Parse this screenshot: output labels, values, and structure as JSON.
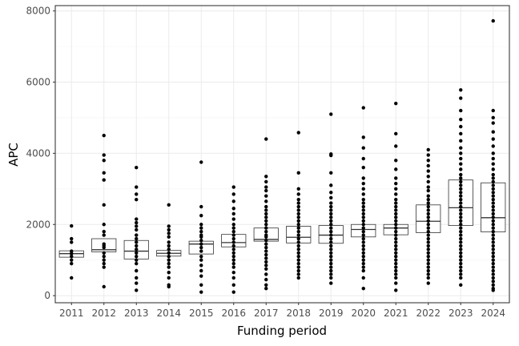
{
  "chart_data": {
    "type": "box",
    "xlabel": "Funding period",
    "ylabel": "APC",
    "ylim": [
      -200,
      8150
    ],
    "yticks": [
      0,
      2000,
      4000,
      6000,
      8000
    ],
    "grid": true,
    "categories": [
      "2011",
      "2012",
      "2013",
      "2014",
      "2015",
      "2016",
      "2017",
      "2018",
      "2019",
      "2020",
      "2021",
      "2022",
      "2023",
      "2024"
    ],
    "boxes": [
      {
        "q1": 1080,
        "median": 1180,
        "q3": 1260
      },
      {
        "q1": 1230,
        "median": 1290,
        "q3": 1600
      },
      {
        "q1": 1030,
        "median": 1250,
        "q3": 1550
      },
      {
        "q1": 1110,
        "median": 1190,
        "q3": 1270
      },
      {
        "q1": 1170,
        "median": 1450,
        "q3": 1530
      },
      {
        "q1": 1370,
        "median": 1490,
        "q3": 1720
      },
      {
        "q1": 1530,
        "median": 1580,
        "q3": 1900
      },
      {
        "q1": 1480,
        "median": 1640,
        "q3": 1950
      },
      {
        "q1": 1470,
        "median": 1700,
        "q3": 1970
      },
      {
        "q1": 1650,
        "median": 1860,
        "q3": 2000
      },
      {
        "q1": 1710,
        "median": 1900,
        "q3": 2000
      },
      {
        "q1": 1770,
        "median": 2090,
        "q3": 2550
      },
      {
        "q1": 1970,
        "median": 2470,
        "q3": 3250
      },
      {
        "q1": 1790,
        "median": 2190,
        "q3": 3170
      }
    ],
    "points": [
      [
        1960,
        1600,
        1500,
        1250,
        1180,
        1100,
        1000,
        900,
        500
      ],
      [
        4500,
        3950,
        3800,
        3450,
        3250,
        2550,
        2000,
        1800,
        1700,
        1450,
        1400,
        1350,
        1200,
        1100,
        1000,
        900,
        800,
        250
      ],
      [
        3600,
        3050,
        2850,
        2700,
        2150,
        2050,
        1950,
        1850,
        1700,
        1600,
        1500,
        1400,
        1300,
        1200,
        1100,
        1000,
        900,
        700,
        500,
        350,
        150
      ],
      [
        2550,
        1950,
        1850,
        1750,
        1650,
        1500,
        1400,
        1300,
        1200,
        1100,
        1000,
        900,
        800,
        650,
        500,
        300,
        250
      ],
      [
        3750,
        2500,
        2250,
        2000,
        1900,
        1800,
        1700,
        1650,
        1550,
        1450,
        1350,
        1250,
        1100,
        1000,
        850,
        700,
        550,
        300,
        100
      ],
      [
        3050,
        2850,
        2650,
        2450,
        2300,
        2150,
        2000,
        1900,
        1800,
        1700,
        1600,
        1500,
        1400,
        1300,
        1200,
        1100,
        1000,
        900,
        800,
        650,
        500,
        300,
        100
      ],
      [
        4400,
        3350,
        3200,
        3050,
        2950,
        2800,
        2650,
        2500,
        2400,
        2300,
        2200,
        2100,
        2000,
        1900,
        1800,
        1700,
        1650,
        1550,
        1450,
        1350,
        1250,
        1150,
        1050,
        950,
        850,
        750,
        600,
        450,
        300,
        200
      ],
      [
        4580,
        3450,
        3000,
        2850,
        2700,
        2600,
        2500,
        2400,
        2300,
        2200,
        2100,
        2000,
        1900,
        1800,
        1700,
        1600,
        1500,
        1400,
        1300,
        1200,
        1100,
        1000,
        900,
        800,
        700,
        600,
        500
      ],
      [
        5100,
        3980,
        3940,
        3450,
        3100,
        2900,
        2750,
        2600,
        2500,
        2400,
        2300,
        2200,
        2100,
        2000,
        1900,
        1800,
        1700,
        1600,
        1500,
        1400,
        1300,
        1200,
        1100,
        1000,
        900,
        800,
        700,
        600,
        500,
        350
      ],
      [
        5280,
        4450,
        4150,
        3850,
        3600,
        3300,
        3150,
        3000,
        2850,
        2700,
        2600,
        2500,
        2400,
        2300,
        2200,
        2100,
        2000,
        1900,
        1800,
        1700,
        1600,
        1500,
        1400,
        1300,
        1200,
        1100,
        1000,
        900,
        800,
        700,
        500,
        200
      ],
      [
        5400,
        4550,
        4200,
        3800,
        3550,
        3300,
        3150,
        3000,
        2850,
        2700,
        2600,
        2500,
        2400,
        2300,
        2200,
        2100,
        2000,
        1900,
        1800,
        1700,
        1600,
        1500,
        1400,
        1300,
        1200,
        1100,
        1000,
        900,
        800,
        700,
        600,
        500,
        350,
        150
      ],
      [
        4100,
        3950,
        3800,
        3650,
        3500,
        3350,
        3200,
        3050,
        2950,
        2800,
        2700,
        2600,
        2500,
        2400,
        2300,
        2200,
        2100,
        2000,
        1900,
        1800,
        1700,
        1600,
        1500,
        1400,
        1300,
        1200,
        1100,
        1000,
        900,
        800,
        700,
        600,
        500,
        350
      ],
      [
        5780,
        5550,
        5200,
        4950,
        4750,
        4550,
        4350,
        4150,
        4000,
        3850,
        3700,
        3550,
        3400,
        3300,
        3200,
        3100,
        3000,
        2900,
        2800,
        2700,
        2600,
        2500,
        2400,
        2300,
        2200,
        2100,
        2000,
        1900,
        1800,
        1700,
        1600,
        1500,
        1400,
        1300,
        1200,
        1100,
        1000,
        900,
        800,
        700,
        600,
        500,
        300
      ],
      [
        7720,
        5200,
        5000,
        4850,
        4600,
        4400,
        4200,
        4000,
        3850,
        3700,
        3550,
        3400,
        3300,
        3200,
        3100,
        3000,
        2900,
        2800,
        2700,
        2600,
        2500,
        2400,
        2300,
        2200,
        2100,
        2000,
        1900,
        1800,
        1700,
        1600,
        1500,
        1400,
        1300,
        1200,
        1100,
        1000,
        900,
        800,
        700,
        600,
        500,
        400,
        300,
        200,
        150
      ]
    ]
  }
}
